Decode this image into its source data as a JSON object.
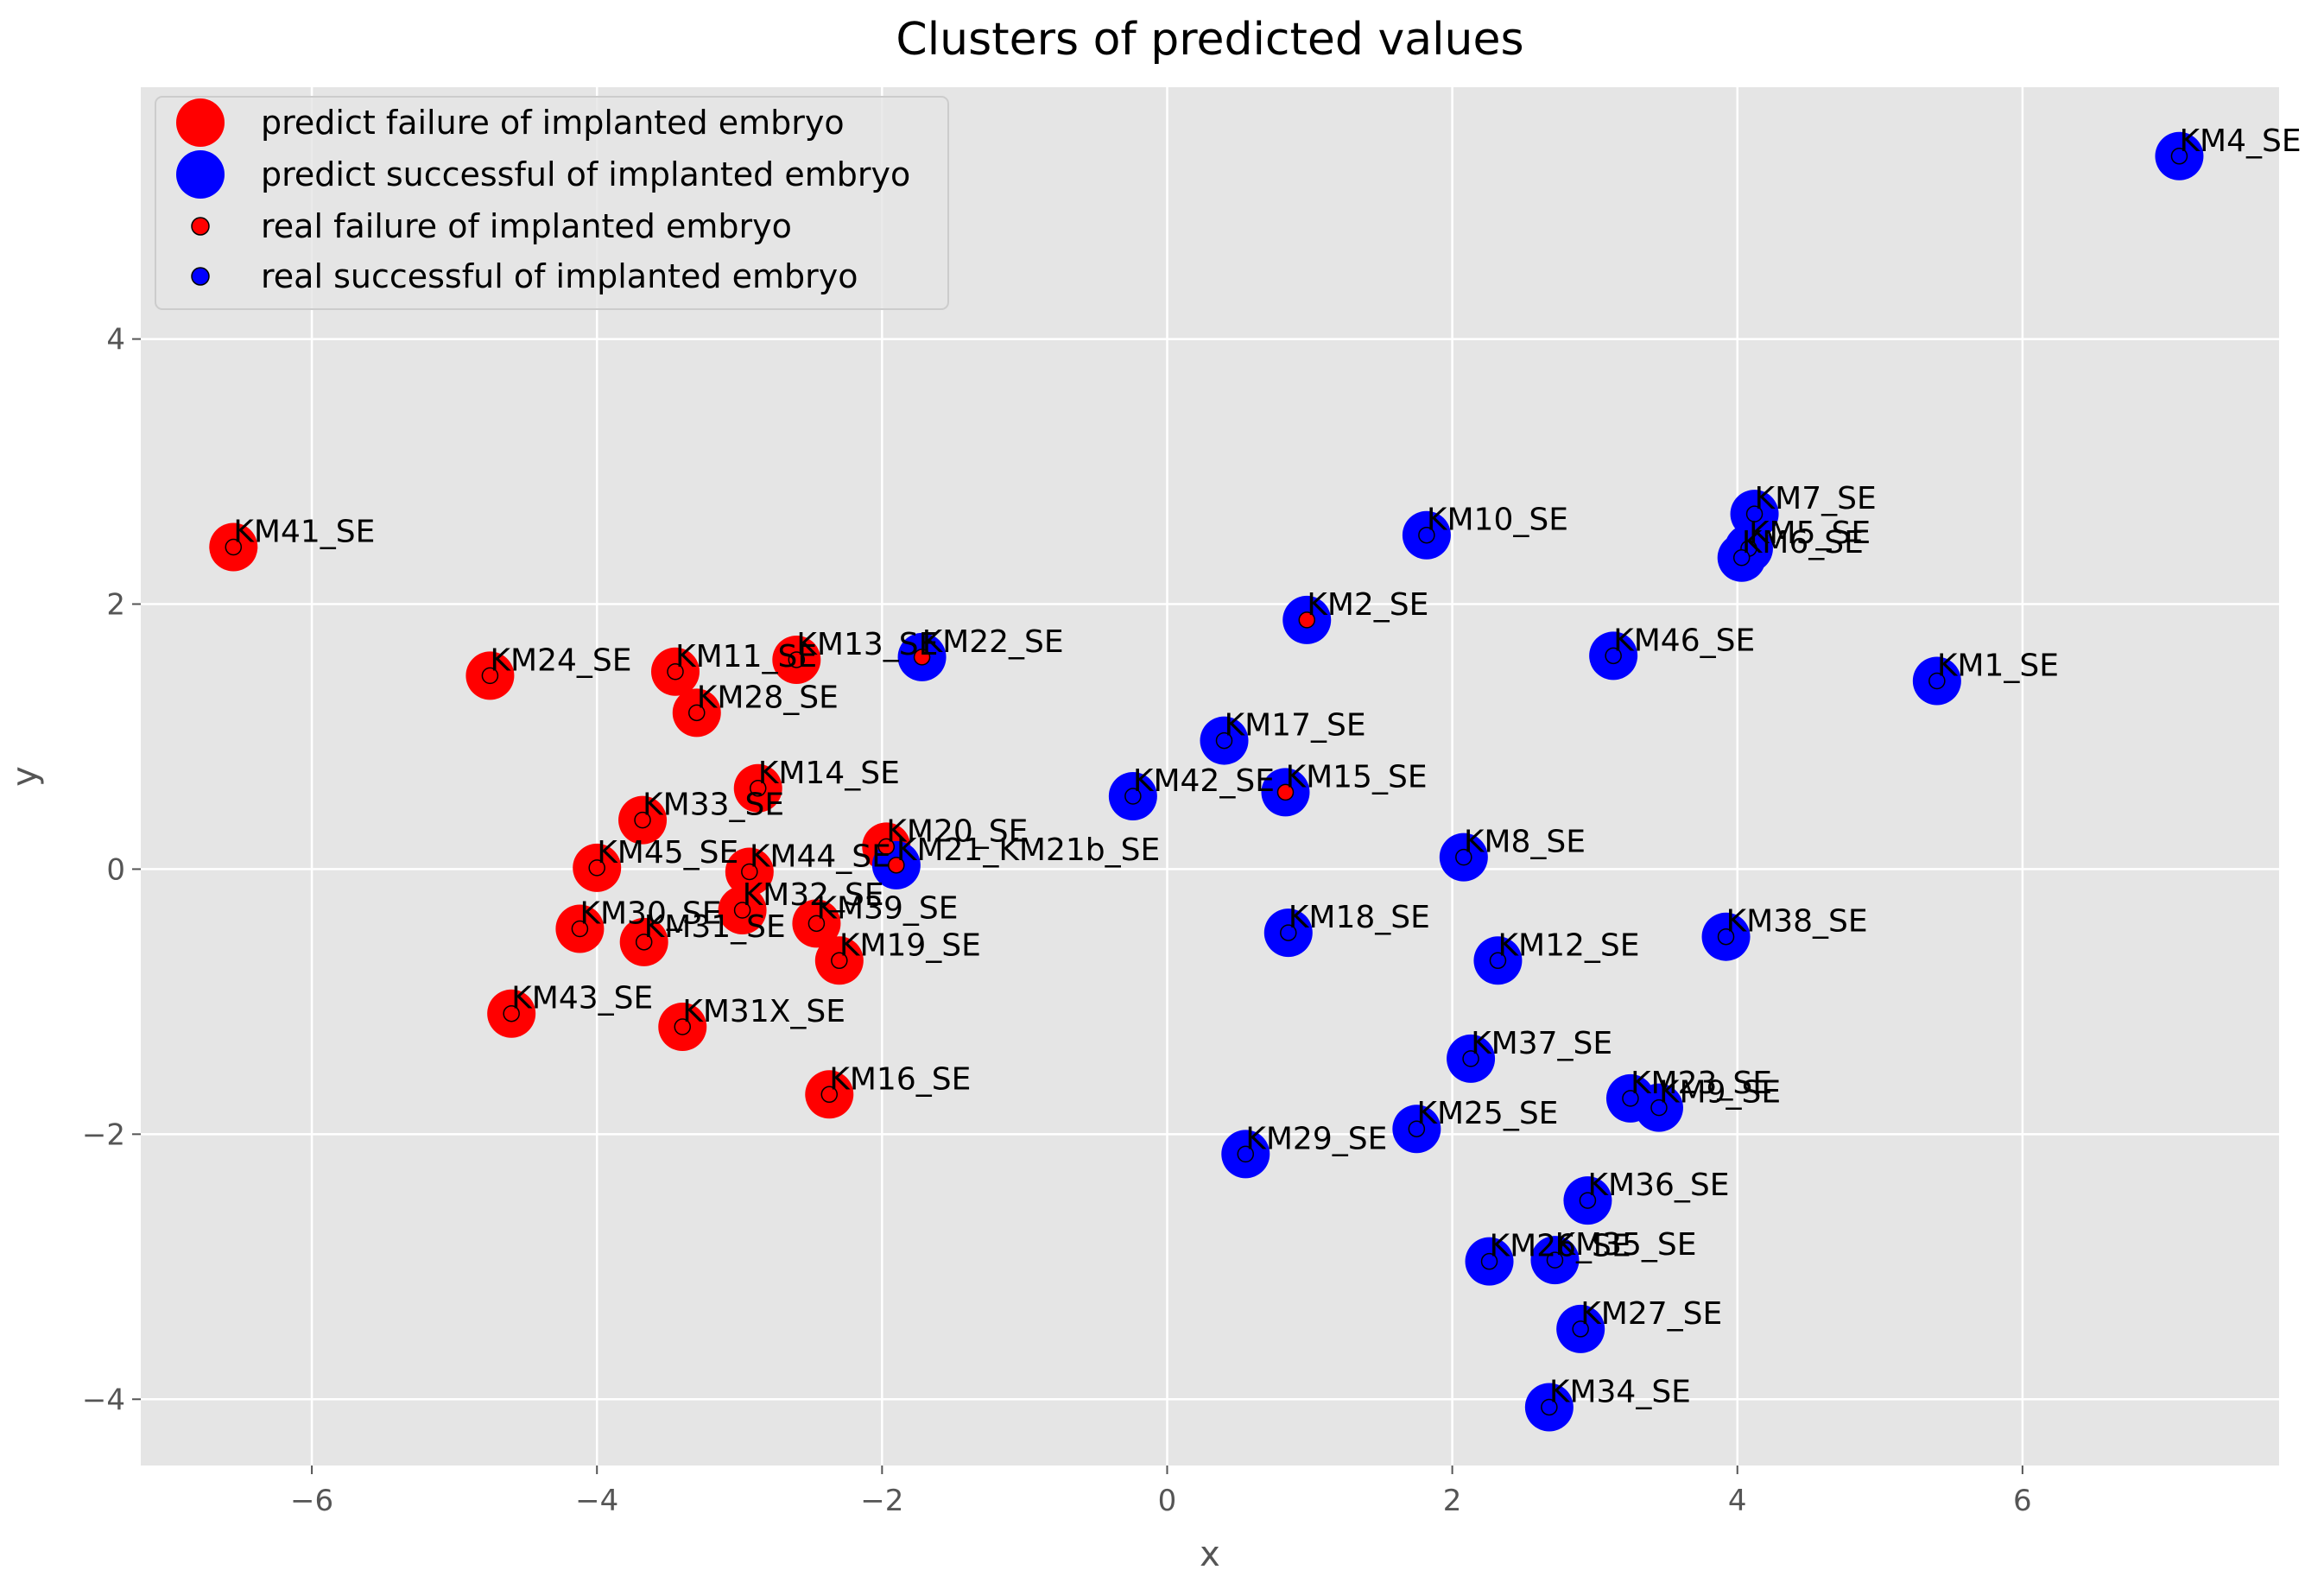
{
  "chart_data": {
    "type": "scatter",
    "title": "Clusters of predicted values",
    "xlabel": "x",
    "ylabel": "y",
    "xlim": [
      -7.2,
      7.8
    ],
    "ylim": [
      -4.5,
      5.9
    ],
    "xticks": [
      -6,
      -4,
      -2,
      0,
      2,
      4,
      6
    ],
    "yticks": [
      -4,
      -2,
      0,
      2,
      4
    ],
    "grid": true,
    "legend_position": "top-left",
    "colors": {
      "failure": "#ff0000",
      "success": "#0000ff",
      "background": "#e5e5e5",
      "grid": "#ffffff"
    },
    "legend": [
      {
        "label": "predict failure of implanted embryo",
        "color": "#ff0000",
        "kind": "predicted"
      },
      {
        "label": "predict successful of implanted embryo",
        "color": "#0000ff",
        "kind": "predicted"
      },
      {
        "label": "real failure of implanted embryo",
        "color": "#ff0000",
        "kind": "real"
      },
      {
        "label": "real successful of implanted embryo",
        "color": "#0000ff",
        "kind": "real"
      }
    ],
    "points": [
      {
        "label": "KM4_SE",
        "x": 7.1,
        "y": 5.38,
        "predicted": "success",
        "real": "success"
      },
      {
        "label": "KM41_SE",
        "x": -6.55,
        "y": 2.43,
        "predicted": "failure",
        "real": "failure"
      },
      {
        "label": "KM24_SE",
        "x": -4.75,
        "y": 1.46,
        "predicted": "failure",
        "real": "failure"
      },
      {
        "label": "KM11_SE",
        "x": -3.45,
        "y": 1.49,
        "predicted": "failure",
        "real": "failure"
      },
      {
        "label": "KM13_SE",
        "x": -2.6,
        "y": 1.58,
        "predicted": "failure",
        "real": "failure"
      },
      {
        "label": "KM22_SE",
        "x": -1.72,
        "y": 1.6,
        "predicted": "success",
        "real": "failure"
      },
      {
        "label": "KM28_SE",
        "x": -3.3,
        "y": 1.18,
        "predicted": "failure",
        "real": "failure"
      },
      {
        "label": "KM14_SE",
        "x": -2.87,
        "y": 0.61,
        "predicted": "failure",
        "real": "failure"
      },
      {
        "label": "KM33_SE",
        "x": -3.68,
        "y": 0.37,
        "predicted": "failure",
        "real": "failure"
      },
      {
        "label": "KM20_SE",
        "x": -1.97,
        "y": 0.17,
        "predicted": "failure",
        "real": "failure"
      },
      {
        "label": "KM21_KM21b_SE",
        "x": -1.9,
        "y": 0.03,
        "predicted": "success",
        "real": "failure"
      },
      {
        "label": "KM45_SE",
        "x": -4.0,
        "y": 0.01,
        "predicted": "failure",
        "real": "failure"
      },
      {
        "label": "KM44_SE",
        "x": -2.93,
        "y": -0.02,
        "predicted": "failure",
        "real": "failure"
      },
      {
        "label": "KM32_SE",
        "x": -2.98,
        "y": -0.31,
        "predicted": "failure",
        "real": "failure"
      },
      {
        "label": "KM39_SE",
        "x": -2.46,
        "y": -0.41,
        "predicted": "failure",
        "real": "failure"
      },
      {
        "label": "KM30_SE",
        "x": -4.12,
        "y": -0.45,
        "predicted": "failure",
        "real": "failure"
      },
      {
        "label": "KM31_SE",
        "x": -3.67,
        "y": -0.55,
        "predicted": "failure",
        "real": "failure"
      },
      {
        "label": "KM19_SE",
        "x": -2.3,
        "y": -0.69,
        "predicted": "failure",
        "real": "failure"
      },
      {
        "label": "KM43_SE",
        "x": -4.6,
        "y": -1.09,
        "predicted": "failure",
        "real": "failure"
      },
      {
        "label": "KM31X_SE",
        "x": -3.4,
        "y": -1.19,
        "predicted": "failure",
        "real": "failure"
      },
      {
        "label": "KM16_SE",
        "x": -2.37,
        "y": -1.7,
        "predicted": "failure",
        "real": "failure"
      },
      {
        "label": "KM10_SE",
        "x": 1.82,
        "y": 2.52,
        "predicted": "success",
        "real": "success"
      },
      {
        "label": "KM7_SE",
        "x": 4.12,
        "y": 2.68,
        "predicted": "success",
        "real": "success"
      },
      {
        "label": "KM5_SE",
        "x": 4.08,
        "y": 2.42,
        "predicted": "success",
        "real": "success"
      },
      {
        "label": "KM6_SE",
        "x": 4.03,
        "y": 2.35,
        "predicted": "success",
        "real": "success"
      },
      {
        "label": "KM2_SE",
        "x": 0.98,
        "y": 1.88,
        "predicted": "success",
        "real": "failure"
      },
      {
        "label": "KM46_SE",
        "x": 3.13,
        "y": 1.61,
        "predicted": "success",
        "real": "success"
      },
      {
        "label": "KM1_SE",
        "x": 5.4,
        "y": 1.42,
        "predicted": "success",
        "real": "success"
      },
      {
        "label": "KM17_SE",
        "x": 0.4,
        "y": 0.97,
        "predicted": "success",
        "real": "success"
      },
      {
        "label": "KM42_SE",
        "x": -0.24,
        "y": 0.55,
        "predicted": "success",
        "real": "success"
      },
      {
        "label": "KM15_SE",
        "x": 0.83,
        "y": 0.58,
        "predicted": "success",
        "real": "failure"
      },
      {
        "label": "KM8_SE",
        "x": 2.08,
        "y": 0.09,
        "predicted": "success",
        "real": "success"
      },
      {
        "label": "KM18_SE",
        "x": 0.85,
        "y": -0.48,
        "predicted": "success",
        "real": "success"
      },
      {
        "label": "KM12_SE",
        "x": 2.32,
        "y": -0.69,
        "predicted": "success",
        "real": "success"
      },
      {
        "label": "KM38_SE",
        "x": 3.92,
        "y": -0.51,
        "predicted": "success",
        "real": "success"
      },
      {
        "label": "KM37_SE",
        "x": 2.13,
        "y": -1.43,
        "predicted": "success",
        "real": "success"
      },
      {
        "label": "KM23_SE",
        "x": 3.25,
        "y": -1.73,
        "predicted": "success",
        "real": "success"
      },
      {
        "label": "KM9_SE",
        "x": 3.45,
        "y": -1.8,
        "predicted": "success",
        "real": "success"
      },
      {
        "label": "KM25_SE",
        "x": 1.75,
        "y": -1.96,
        "predicted": "success",
        "real": "success"
      },
      {
        "label": "KM29_SE",
        "x": 0.55,
        "y": -2.15,
        "predicted": "success",
        "real": "success"
      },
      {
        "label": "KM36_SE",
        "x": 2.95,
        "y": -2.5,
        "predicted": "success",
        "real": "success"
      },
      {
        "label": "KM26_SE",
        "x": 2.26,
        "y": -2.96,
        "predicted": "success",
        "real": "success"
      },
      {
        "label": "KM35_SE",
        "x": 2.72,
        "y": -2.95,
        "predicted": "success",
        "real": "success"
      },
      {
        "label": "KM27_SE",
        "x": 2.9,
        "y": -3.47,
        "predicted": "success",
        "real": "success"
      },
      {
        "label": "KM34_SE",
        "x": 2.68,
        "y": -4.06,
        "predicted": "success",
        "real": "success"
      }
    ]
  }
}
